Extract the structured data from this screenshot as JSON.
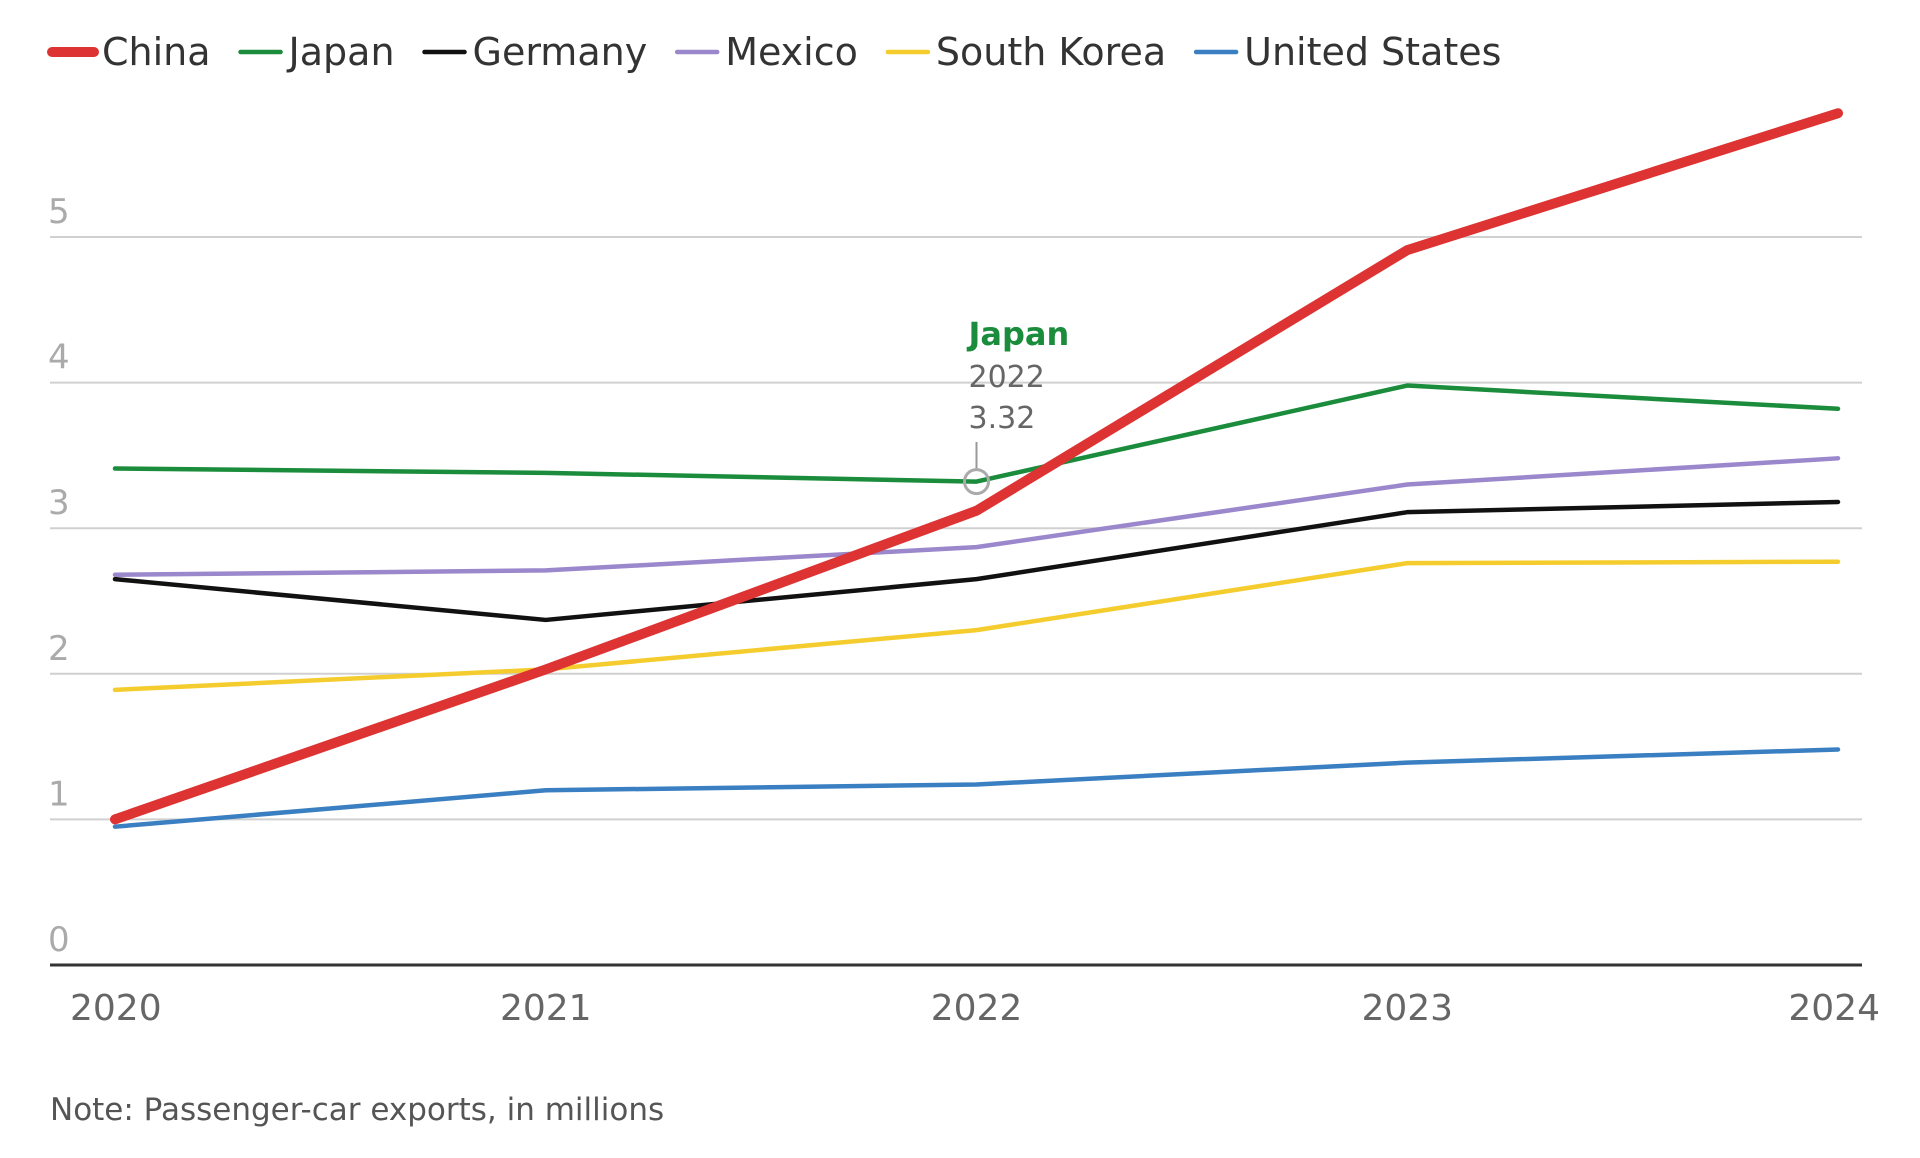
{
  "chart_data": {
    "type": "line",
    "title": "",
    "xlabel": "",
    "ylabel": "",
    "x": [
      "2020",
      "2021",
      "2022",
      "2023",
      "2024"
    ],
    "ylim": [
      0,
      6
    ],
    "yticks": [
      "0",
      "1",
      "2",
      "3",
      "4",
      "5"
    ],
    "grid": true,
    "legend_position": "top",
    "series": [
      {
        "name": "China",
        "color": "#dd3333",
        "emphasis": true,
        "values": [
          1.0,
          2.03,
          3.12,
          4.91,
          5.85
        ]
      },
      {
        "name": "Japan",
        "color": "#1a8c3c",
        "emphasis": false,
        "values": [
          3.41,
          3.38,
          3.32,
          3.98,
          3.82
        ]
      },
      {
        "name": "Germany",
        "color": "#111111",
        "emphasis": false,
        "values": [
          2.65,
          2.37,
          2.65,
          3.11,
          3.18
        ]
      },
      {
        "name": "Mexico",
        "color": "#9b87cc",
        "emphasis": false,
        "values": [
          2.68,
          2.71,
          2.87,
          3.3,
          3.48
        ]
      },
      {
        "name": "South Korea",
        "color": "#f5cc2e",
        "emphasis": false,
        "values": [
          1.89,
          2.03,
          2.3,
          2.76,
          2.77
        ]
      },
      {
        "name": "United States",
        "color": "#3a7fc1",
        "emphasis": false,
        "values": [
          0.95,
          1.2,
          1.24,
          1.39,
          1.48
        ]
      }
    ],
    "annotation": {
      "series": "Japan",
      "x": "2022",
      "value": 3.32,
      "label_title": "Japan",
      "label_x": "2022",
      "label_value": "3.32"
    },
    "note": "Note: Passenger-car exports, in millions"
  }
}
